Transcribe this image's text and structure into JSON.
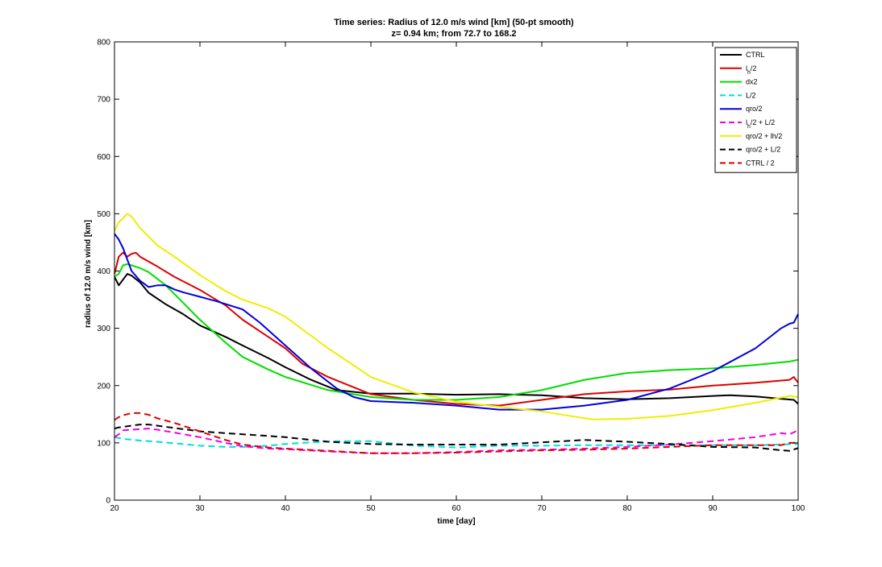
{
  "chart_data": {
    "type": "line",
    "title": "Time series: Radius of 12.0 m/s wind [km] (50-pt smooth)",
    "subtitle": "z= 0.94 km; from  72.7 to 168.2",
    "xlabel": "time [day]",
    "ylabel": "radius of 12.0 m/s wind [km]",
    "xlim": [
      20,
      100
    ],
    "ylim": [
      0,
      800
    ],
    "xticks": [
      20,
      30,
      40,
      50,
      60,
      70,
      80,
      90,
      100
    ],
    "yticks": [
      0,
      100,
      200,
      300,
      400,
      500,
      600,
      700,
      800
    ],
    "grid": false,
    "legend_position": "top-right",
    "series": [
      {
        "name": "CTRL",
        "color": "#000000",
        "dash": "solid",
        "x": [
          20,
          20.5,
          21,
          21.5,
          22,
          23,
          24,
          26,
          28,
          30,
          33,
          35,
          38,
          40,
          43,
          46,
          50,
          55,
          60,
          65,
          70,
          75,
          80,
          85,
          90,
          92,
          95,
          98,
          99.5,
          100
        ],
        "y": [
          390,
          375,
          385,
          395,
          392,
          380,
          362,
          342,
          325,
          305,
          285,
          270,
          248,
          232,
          210,
          192,
          186,
          186,
          184,
          185,
          183,
          178,
          176,
          178,
          182,
          183,
          181,
          177,
          175,
          168
        ]
      },
      {
        "name": "lh/2",
        "name_main": "l",
        "name_sub": "h",
        "name_tail": "/2",
        "color": "#dd0000",
        "dash": "solid",
        "x": [
          20,
          20.5,
          21,
          21.5,
          22,
          22.5,
          23,
          25,
          27,
          30,
          33,
          35,
          38,
          40,
          42,
          45,
          50,
          55,
          60,
          65,
          70,
          75,
          80,
          85,
          90,
          95,
          99,
          99.5,
          100
        ],
        "y": [
          395,
          425,
          432,
          425,
          430,
          432,
          425,
          408,
          390,
          367,
          340,
          315,
          285,
          265,
          238,
          215,
          185,
          175,
          168,
          165,
          175,
          185,
          190,
          193,
          200,
          205,
          210,
          215,
          205
        ]
      },
      {
        "name": "dx2",
        "color": "#00dd00",
        "dash": "solid",
        "x": [
          20,
          20.5,
          21,
          21.5,
          22,
          23,
          24,
          26,
          28,
          30,
          33,
          35,
          38,
          40,
          45,
          50,
          55,
          60,
          65,
          70,
          75,
          80,
          85,
          90,
          95,
          99,
          100
        ],
        "y": [
          390,
          395,
          410,
          412,
          410,
          405,
          398,
          375,
          345,
          315,
          275,
          250,
          228,
          215,
          192,
          180,
          175,
          175,
          180,
          192,
          210,
          222,
          227,
          230,
          236,
          242,
          245
        ]
      },
      {
        "name": "L/2",
        "color": "#00dddd",
        "dash": "dashed",
        "x": [
          20,
          21,
          23,
          25,
          28,
          30,
          33,
          35,
          38,
          40,
          43,
          46,
          50,
          55,
          60,
          65,
          70,
          75,
          80,
          85,
          90,
          95,
          100
        ],
        "y": [
          110,
          107,
          104,
          102,
          98,
          95,
          93,
          93,
          95,
          98,
          101,
          103,
          103,
          95,
          92,
          95,
          95,
          96,
          96,
          96,
          96,
          96,
          98
        ]
      },
      {
        "name": "qro/2",
        "color": "#0000dd",
        "dash": "solid",
        "x": [
          20,
          20.5,
          21,
          21.5,
          22,
          23,
          24,
          25,
          26,
          27,
          28,
          30,
          32,
          35,
          37,
          40,
          43,
          46,
          48,
          50,
          55,
          60,
          65,
          70,
          75,
          80,
          85,
          90,
          95,
          98,
          99,
          99.5,
          100
        ],
        "y": [
          465,
          455,
          440,
          420,
          400,
          383,
          372,
          375,
          375,
          368,
          363,
          355,
          347,
          333,
          310,
          270,
          230,
          195,
          180,
          173,
          170,
          165,
          158,
          158,
          165,
          175,
          195,
          225,
          265,
          300,
          308,
          310,
          325
        ]
      },
      {
        "name": "lh/2 + L/2",
        "name_main": "l",
        "name_sub": "h",
        "name_tail": "/2 + L/2",
        "color": "#ee00ee",
        "dash": "dashed",
        "x": [
          20,
          20.5,
          21,
          22,
          24,
          25,
          27,
          30,
          33,
          35,
          38,
          40,
          45,
          50,
          55,
          60,
          65,
          70,
          75,
          80,
          85,
          90,
          95,
          98,
          99,
          100
        ],
        "y": [
          110,
          115,
          122,
          123,
          125,
          123,
          118,
          110,
          100,
          94,
          90,
          89,
          85,
          82,
          82,
          84,
          87,
          88,
          90,
          93,
          97,
          103,
          110,
          117,
          115,
          122
        ]
      },
      {
        "name": "qro/2 + lh/2",
        "color": "#eeee00",
        "dash": "solid",
        "x": [
          20,
          20.5,
          21,
          21.5,
          22,
          23,
          25,
          27,
          30,
          33,
          35,
          38,
          40,
          45,
          50,
          55,
          60,
          65,
          70,
          75,
          76,
          80,
          85,
          90,
          95,
          99,
          100
        ],
        "y": [
          470,
          485,
          492,
          500,
          495,
          475,
          445,
          425,
          393,
          365,
          350,
          335,
          320,
          265,
          215,
          188,
          172,
          163,
          155,
          143,
          141,
          142,
          147,
          157,
          170,
          182,
          180
        ]
      },
      {
        "name": "qro/2 + L/2",
        "color": "#000000",
        "dash": "dashed",
        "x": [
          20,
          20.5,
          21,
          22,
          23,
          24,
          25,
          27,
          30,
          33,
          35,
          38,
          40,
          45,
          50,
          55,
          60,
          65,
          70,
          75,
          80,
          85,
          90,
          95,
          98,
          99,
          100
        ],
        "y": [
          125,
          127,
          128,
          130,
          132,
          132,
          130,
          126,
          120,
          117,
          115,
          112,
          110,
          102,
          98,
          97,
          97,
          97,
          101,
          105,
          102,
          98,
          93,
          92,
          87,
          86,
          91
        ]
      },
      {
        "name": "CTRL / 2",
        "color": "#dd0000",
        "dash": "dashed",
        "x": [
          20,
          20.5,
          21,
          22,
          23,
          24,
          25,
          27,
          30,
          33,
          35,
          38,
          40,
          45,
          50,
          55,
          60,
          65,
          70,
          75,
          80,
          85,
          90,
          95,
          98,
          99,
          100
        ],
        "y": [
          140,
          145,
          148,
          152,
          152,
          149,
          143,
          135,
          120,
          105,
          97,
          92,
          90,
          86,
          82,
          82,
          83,
          85,
          87,
          88,
          90,
          93,
          96,
          96,
          96,
          100,
          100
        ]
      }
    ]
  }
}
